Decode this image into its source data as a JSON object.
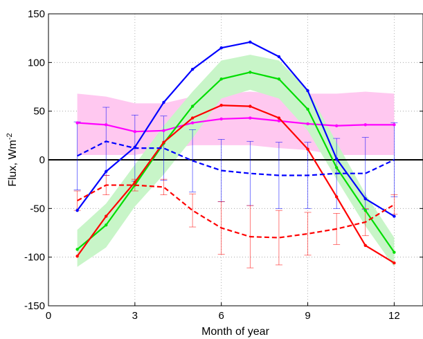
{
  "chart_data": {
    "type": "line",
    "xlabel": "Month of year",
    "ylabel": "Flux, Wm",
    "ylabel_superscript": "-2",
    "xlim": [
      0,
      13
    ],
    "ylim": [
      -150,
      150
    ],
    "xticks": [
      0,
      3,
      6,
      9,
      12
    ],
    "yticks": [
      -150,
      -100,
      -50,
      0,
      50,
      100,
      150
    ],
    "grid": true,
    "zero_line": true,
    "x": [
      1,
      2,
      3,
      4,
      5,
      6,
      7,
      8,
      9,
      10,
      11,
      12
    ],
    "bands": [
      {
        "color": "#ffc8f0",
        "lower": [
          5,
          5,
          5,
          10,
          15,
          15,
          15,
          12,
          10,
          5,
          5,
          5
        ],
        "upper": [
          68,
          65,
          58,
          58,
          65,
          68,
          70,
          68,
          68,
          68,
          70,
          68
        ]
      },
      {
        "color": "#c8f5c8",
        "lower": [
          -110,
          -90,
          -48,
          -15,
          22,
          63,
          72,
          63,
          30,
          -20,
          -68,
          -110
        ],
        "upper": [
          -72,
          -45,
          -5,
          35,
          70,
          102,
          108,
          102,
          72,
          18,
          -35,
          -80
        ]
      }
    ],
    "series": [
      {
        "color": "#ff00ff",
        "dashed": false,
        "values": [
          38,
          36,
          29,
          30,
          38,
          42,
          43,
          40,
          37,
          35,
          36,
          36
        ]
      },
      {
        "color": "#00dd00",
        "dashed": false,
        "values": [
          -92,
          -67,
          -26,
          17,
          55,
          83,
          90,
          83,
          52,
          -8,
          -52,
          -95
        ]
      },
      {
        "color": "#ff0000",
        "dashed": false,
        "values": [
          -99,
          -58,
          -23,
          18,
          43,
          56,
          55,
          43,
          11,
          -38,
          -88,
          -106
        ]
      },
      {
        "color": "#0000ff",
        "dashed": false,
        "values": [
          -52,
          -12,
          13,
          59,
          93,
          115,
          121,
          106,
          71,
          1,
          -40,
          -58
        ]
      },
      {
        "color": "#0000ff",
        "dashed": true,
        "values": [
          4,
          19,
          12,
          12,
          -1,
          -11,
          -14,
          -16,
          -16,
          -14,
          -14,
          0
        ],
        "error": [
          35,
          35,
          34,
          33,
          32,
          32,
          33,
          34,
          34,
          36,
          37,
          38
        ]
      },
      {
        "color": "#ff0000",
        "dashed": true,
        "values": [
          -42,
          -26,
          -26,
          -28,
          -52,
          -70,
          -79,
          -80,
          -76,
          -71,
          -64,
          -46
        ],
        "error": [
          10,
          10,
          6,
          8,
          17,
          27,
          32,
          28,
          22,
          16,
          14,
          10
        ]
      }
    ]
  }
}
